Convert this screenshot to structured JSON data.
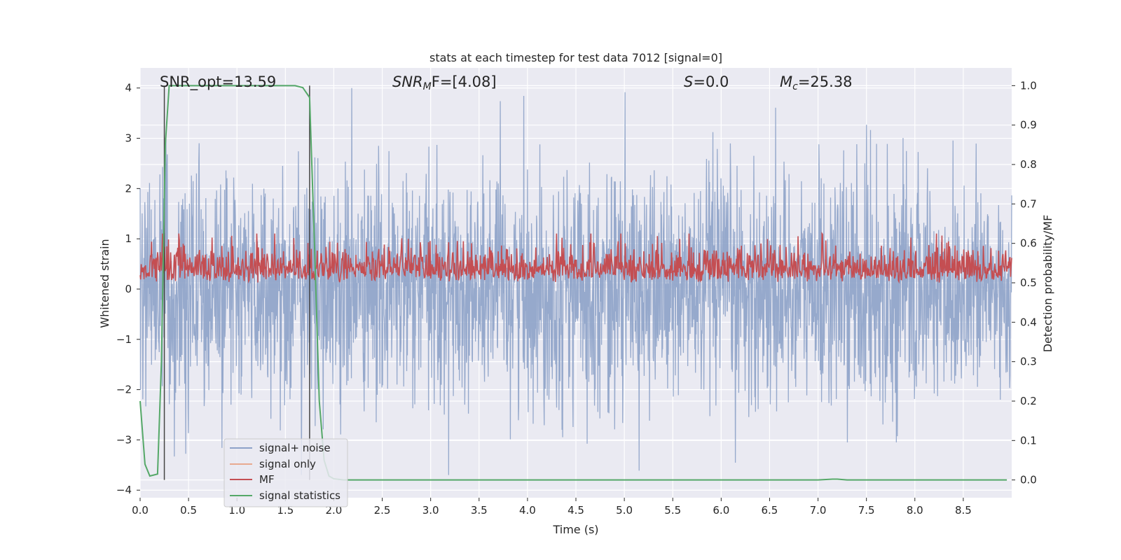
{
  "chart_data": {
    "type": "line",
    "title": "stats at each timestep for test data 7012 [signal=0]",
    "xlabel": "Time (s)",
    "ylabel": "Whitened strain",
    "ylabel_right": "Detection probability/MF",
    "xlim": [
      0.0,
      9.0
    ],
    "ylim": [
      -4.15,
      4.4
    ],
    "ylim_right": [
      -0.045,
      1.045
    ],
    "x_ticks": [
      "0.0",
      "0.5",
      "1.0",
      "1.5",
      "2.0",
      "2.5",
      "3.0",
      "3.5",
      "4.0",
      "4.5",
      "5.0",
      "5.5",
      "6.0",
      "6.5",
      "7.0",
      "7.5",
      "8.0",
      "8.5"
    ],
    "y_ticks": [
      "−4",
      "−3",
      "−2",
      "−1",
      "0",
      "1",
      "2",
      "3",
      "4"
    ],
    "y_ticks_right": [
      "0.0",
      "0.1",
      "0.2",
      "0.3",
      "0.4",
      "0.5",
      "0.6",
      "0.7",
      "0.8",
      "0.9",
      "1.0"
    ],
    "grid": true,
    "annotations": {
      "snr_opt": "SNR_opt=13.59",
      "snr_mf_var": "SNR",
      "snr_mf_sub": "M",
      "snr_mf_rest": "F=[4.08]",
      "s_var": "S",
      "s_rest": "=0.0",
      "mc_var": "M",
      "mc_sub": "c",
      "mc_rest": "=25.38"
    },
    "vertical_markers_s": [
      0.25,
      1.75
    ],
    "legend_position": "lower-left",
    "series": [
      {
        "name": "signal+ noise",
        "axis": "left",
        "color": "#8da2c8",
        "description_values": {
          "typical_range": [
            -2.5,
            2.5
          ],
          "max": 4.0,
          "min": -3.7
        }
      },
      {
        "name": "signal only",
        "axis": "left",
        "color": "#e8a98f",
        "values": []
      },
      {
        "name": "MF",
        "axis": "right",
        "color": "#c44e52",
        "description_values": {
          "typical_range": [
            0.5,
            0.62
          ],
          "max": 0.625
        }
      },
      {
        "name": "signal statistics",
        "axis": "right",
        "color": "#55a868",
        "x": [
          0.0,
          0.05,
          0.1,
          0.18,
          0.22,
          0.26,
          0.3,
          0.34,
          0.5,
          1.0,
          1.5,
          1.6,
          1.68,
          1.75,
          1.8,
          1.85,
          1.9,
          1.95,
          2.0,
          2.1,
          2.5,
          3.0,
          4.0,
          5.0,
          6.0,
          7.0,
          7.15,
          7.2,
          7.3,
          8.0,
          8.95
        ],
        "values": [
          0.2,
          0.04,
          0.01,
          0.015,
          0.3,
          0.85,
          1.0,
          1.0,
          1.0,
          1.0,
          1.0,
          1.0,
          0.995,
          0.97,
          0.6,
          0.2,
          0.05,
          0.01,
          0.003,
          0.0,
          0.0,
          0.0,
          0.0,
          0.0,
          0.0,
          0.0,
          0.002,
          0.002,
          0.0,
          0.0,
          0.0
        ]
      }
    ]
  }
}
